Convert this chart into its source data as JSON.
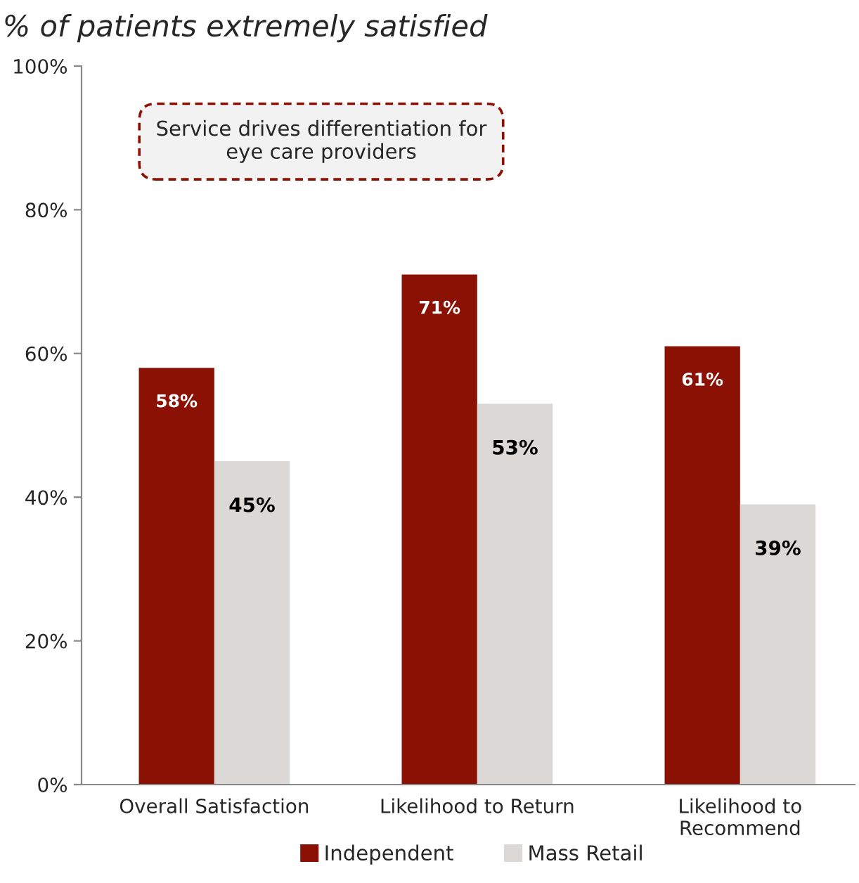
{
  "chart_data": {
    "type": "bar",
    "title": "% of patients extremely satisfied",
    "categories": [
      "Overall Satisfaction",
      "Likelihood to Return",
      "Likelihood to\nRecommend"
    ],
    "series": [
      {
        "name": "Independent",
        "color": "#8b1105",
        "values": [
          58,
          71,
          61
        ],
        "value_labels": [
          "58%",
          "71%",
          "61%"
        ]
      },
      {
        "name": "Mass Retail",
        "color": "#dcd8d5",
        "values": [
          45,
          53,
          39
        ],
        "value_labels": [
          "45%",
          "53%",
          "39%"
        ]
      }
    ],
    "ylim": [
      0,
      100
    ],
    "yticks": [
      {
        "value": 0,
        "label": "0%"
      },
      {
        "value": 20,
        "label": "20%"
      },
      {
        "value": 40,
        "label": "40%"
      },
      {
        "value": 60,
        "label": "60%"
      },
      {
        "value": 80,
        "label": "80%"
      },
      {
        "value": 100,
        "label": "100%"
      }
    ],
    "annotations": [
      "Service drives differentiation for eye care providers"
    ],
    "grid": false,
    "legend": "bottom"
  }
}
